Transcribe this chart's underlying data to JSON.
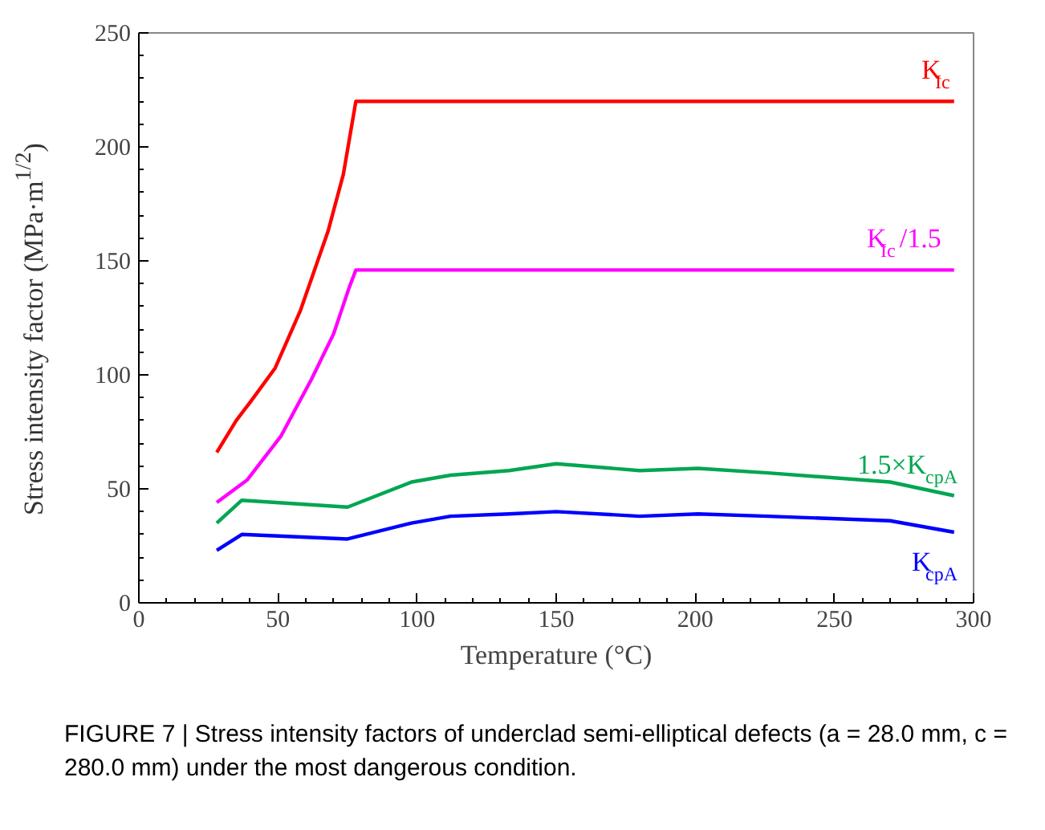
{
  "chart_data": {
    "type": "line",
    "xlabel": "Temperature (°C)",
    "ylabel": "Stress intensity factor (MPa·m$^{1/2}$)",
    "xlim": [
      0,
      300
    ],
    "ylim": [
      0,
      250
    ],
    "xticks": [
      0,
      50,
      100,
      150,
      200,
      250,
      300
    ],
    "yticks": [
      0,
      50,
      100,
      150,
      200,
      250
    ],
    "grid": false,
    "marker": "none",
    "line_style": "solid",
    "annotations": [
      "FIGURE 7 | Stress intensity factors of underclad semi-elliptical defects (a = 28.0 mm, c = 280.0 mm) under the most dangerous condition."
    ],
    "series": [
      {
        "name": "K$_{Ic}$",
        "color": "#ff0000",
        "x": [
          28,
          35,
          40,
          49,
          58,
          68,
          73.5,
          78,
          293
        ],
        "values": [
          66,
          80,
          88,
          103,
          128,
          163,
          188,
          220,
          220
        ]
      },
      {
        "name": "K$_{Ic}$/1.5",
        "color": "#ff00ff",
        "x": [
          28,
          39,
          51,
          62,
          70,
          75.5,
          78,
          293
        ],
        "values": [
          44,
          54,
          73,
          98,
          118,
          138,
          146,
          146
        ]
      },
      {
        "name": "1.5×K$_{cpA}$",
        "color": "#00a651",
        "x": [
          28,
          37,
          75,
          98,
          112,
          133,
          150,
          180,
          201,
          226,
          270,
          293
        ],
        "values": [
          35,
          45,
          42,
          53,
          56,
          58,
          61,
          58,
          59,
          57,
          53,
          47
        ]
      },
      {
        "name": "K$_{cpA}$",
        "color": "#0000ff",
        "x": [
          28,
          37,
          75,
          98,
          112,
          133,
          150,
          180,
          201,
          226,
          270,
          293
        ],
        "values": [
          23,
          30,
          28,
          35,
          38,
          39,
          40,
          38,
          39,
          38,
          36,
          31
        ]
      }
    ]
  }
}
